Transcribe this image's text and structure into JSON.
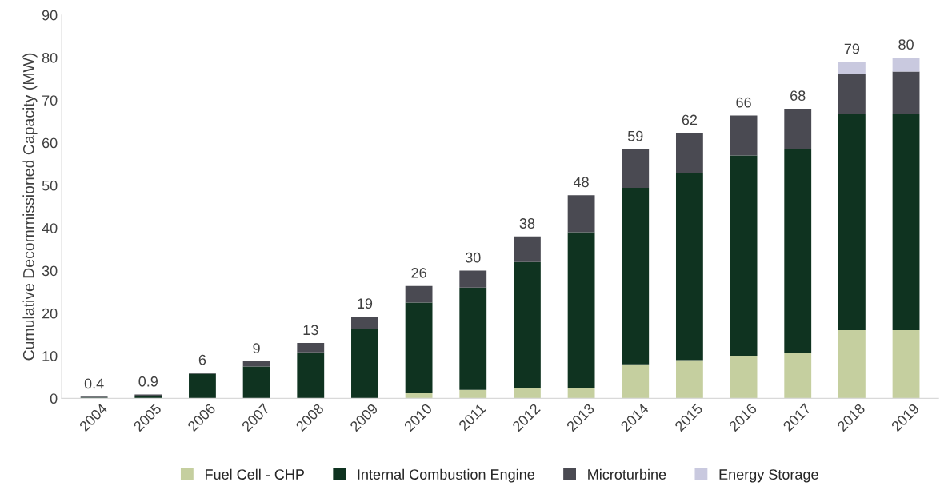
{
  "chart_data": {
    "type": "bar",
    "stacked": true,
    "ylabel": "Cumulative Decommissioned Capacity (MW)",
    "categories": [
      "2004",
      "2005",
      "2006",
      "2007",
      "2008",
      "2009",
      "2010",
      "2011",
      "2012",
      "2013",
      "2014",
      "2015",
      "2016",
      "2017",
      "2018",
      "2019"
    ],
    "series": [
      {
        "name": "Fuel Cell - CHP",
        "color": "#c5cf9f",
        "values": [
          null,
          null,
          null,
          null,
          null,
          null,
          1.2,
          2,
          2.4,
          2.4,
          8,
          9,
          10,
          10.6,
          16,
          16
        ]
      },
      {
        "name": "Internal Combustion Engine",
        "color": "#0f3320",
        "values": [
          0.2,
          0.6,
          5.8,
          7.5,
          10.8,
          16.3,
          21.3,
          24,
          29.6,
          36.6,
          41.4,
          44,
          47,
          47.9,
          50.7,
          50.7
        ]
      },
      {
        "name": "Microturbine",
        "color": "#4a4a52",
        "values": [
          0.2,
          0.3,
          0.2,
          1.2,
          2.2,
          2.9,
          3.9,
          4,
          6,
          8.7,
          9.1,
          9.3,
          9.4,
          9.5,
          9.5,
          10
        ]
      },
      {
        "name": "Energy Storage",
        "color": "#c9c9df",
        "values": [
          null,
          null,
          null,
          null,
          null,
          null,
          null,
          null,
          null,
          null,
          null,
          null,
          null,
          null,
          2.8,
          3.3
        ]
      }
    ],
    "totals": [
      "0.4",
      "0.9",
      "6",
      "9",
      "13",
      "19",
      "26",
      "30",
      "38",
      "48",
      "59",
      "62",
      "66",
      "68",
      "79",
      "80"
    ],
    "ylim": [
      0,
      90
    ],
    "yticks": [
      0,
      10,
      20,
      30,
      40,
      50,
      60,
      70,
      80,
      90
    ],
    "grid": false,
    "legend": "bottom"
  }
}
